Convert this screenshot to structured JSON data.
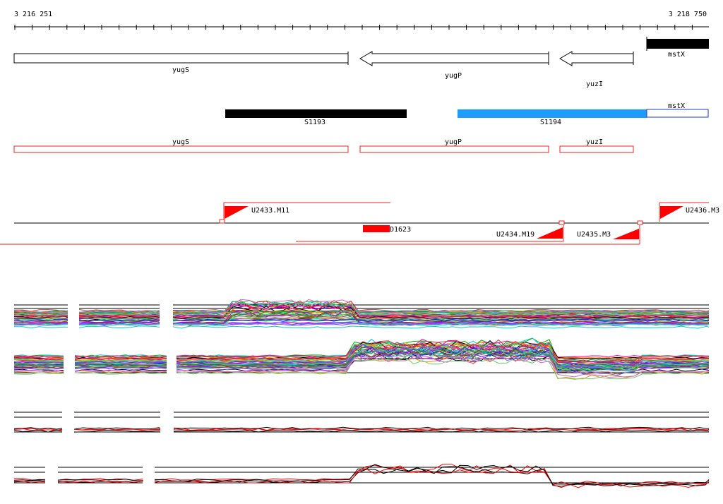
{
  "coordinates": {
    "start": "3 216 251",
    "end": "3 218 750"
  },
  "genes": [
    {
      "name": "yugS",
      "strand": "forward"
    },
    {
      "name": "yugP",
      "strand": "reverse"
    },
    {
      "name": "yuzI",
      "strand": "reverse"
    },
    {
      "name": "mstX",
      "strand": "forward"
    }
  ],
  "segments": [
    {
      "name": "S1193",
      "color": "#000000"
    },
    {
      "name": "S1194",
      "color": "#1e9bff"
    },
    {
      "name": "mstX",
      "color": "#ffffff"
    }
  ],
  "cds_boxes": [
    {
      "name": "yugS"
    },
    {
      "name": "yugP"
    },
    {
      "name": "yuzI"
    }
  ],
  "transcription_units": [
    {
      "name": "U2433.M11"
    },
    {
      "name": "D1623"
    },
    {
      "name": "U2434.M19"
    },
    {
      "name": "U2435.M3"
    },
    {
      "name": "U2436.M3"
    }
  ],
  "colors": {
    "cds_outline": "#e8261f",
    "tu_red": "#ff0000",
    "segment_blue": "#1e9bff"
  },
  "expression_panels": [
    {
      "id": "panel-1",
      "series_count": 40
    },
    {
      "id": "panel-2",
      "series_count": 40
    },
    {
      "id": "panel-3",
      "series_count": 4
    },
    {
      "id": "panel-4",
      "series_count": 4
    }
  ]
}
